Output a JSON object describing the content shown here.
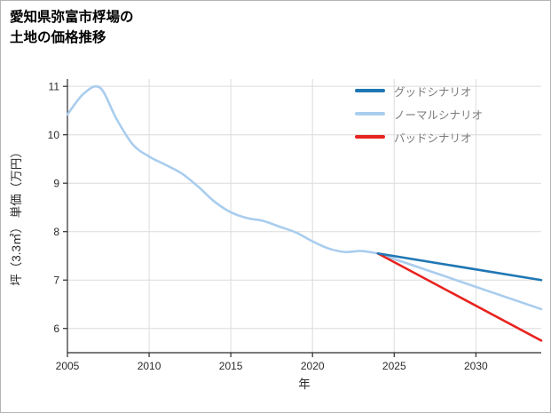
{
  "header": {
    "title_line1": "愛知県弥富市桴場の",
    "title_line2": "土地の価格推移"
  },
  "chart_data": {
    "type": "line",
    "title": "愛知県弥富市桴場の土地の価格推移",
    "xlabel": "年",
    "ylabel": "坪（3.3㎡） 単価（万円）",
    "xlim": [
      2005,
      2034
    ],
    "ylim": [
      5.5,
      11.15
    ],
    "xticks": [
      2005,
      2010,
      2015,
      2020,
      2025,
      2030
    ],
    "yticks": [
      6,
      7,
      8,
      9,
      10,
      11
    ],
    "grid": true,
    "legend_position": "top-right",
    "history": {
      "key": "price-history",
      "color": "#a9cdee",
      "x": [
        2005,
        2006,
        2007,
        2008,
        2009,
        2010,
        2011,
        2012,
        2013,
        2014,
        2015,
        2016,
        2017,
        2018,
        2019,
        2020,
        2021,
        2022,
        2023,
        2024
      ],
      "y": [
        10.42,
        10.85,
        10.97,
        10.33,
        9.8,
        9.55,
        9.38,
        9.2,
        8.93,
        8.62,
        8.4,
        8.28,
        8.22,
        8.1,
        7.98,
        7.8,
        7.65,
        7.58,
        7.6,
        7.55
      ]
    },
    "series": [
      {
        "key": "good-scenario",
        "name": "グッドシナリオ",
        "color": "#1f77b4",
        "x": [
          2024,
          2034
        ],
        "y": [
          7.55,
          7.0
        ]
      },
      {
        "key": "normal-scenario",
        "name": "ノーマルシナリオ",
        "color": "#a9cdee",
        "x": [
          2024,
          2034
        ],
        "y": [
          7.55,
          6.4
        ]
      },
      {
        "key": "bad-scenario",
        "name": "バッドシナリオ",
        "color": "#e8231f",
        "x": [
          2024,
          2034
        ],
        "y": [
          7.55,
          5.75
        ]
      }
    ]
  }
}
